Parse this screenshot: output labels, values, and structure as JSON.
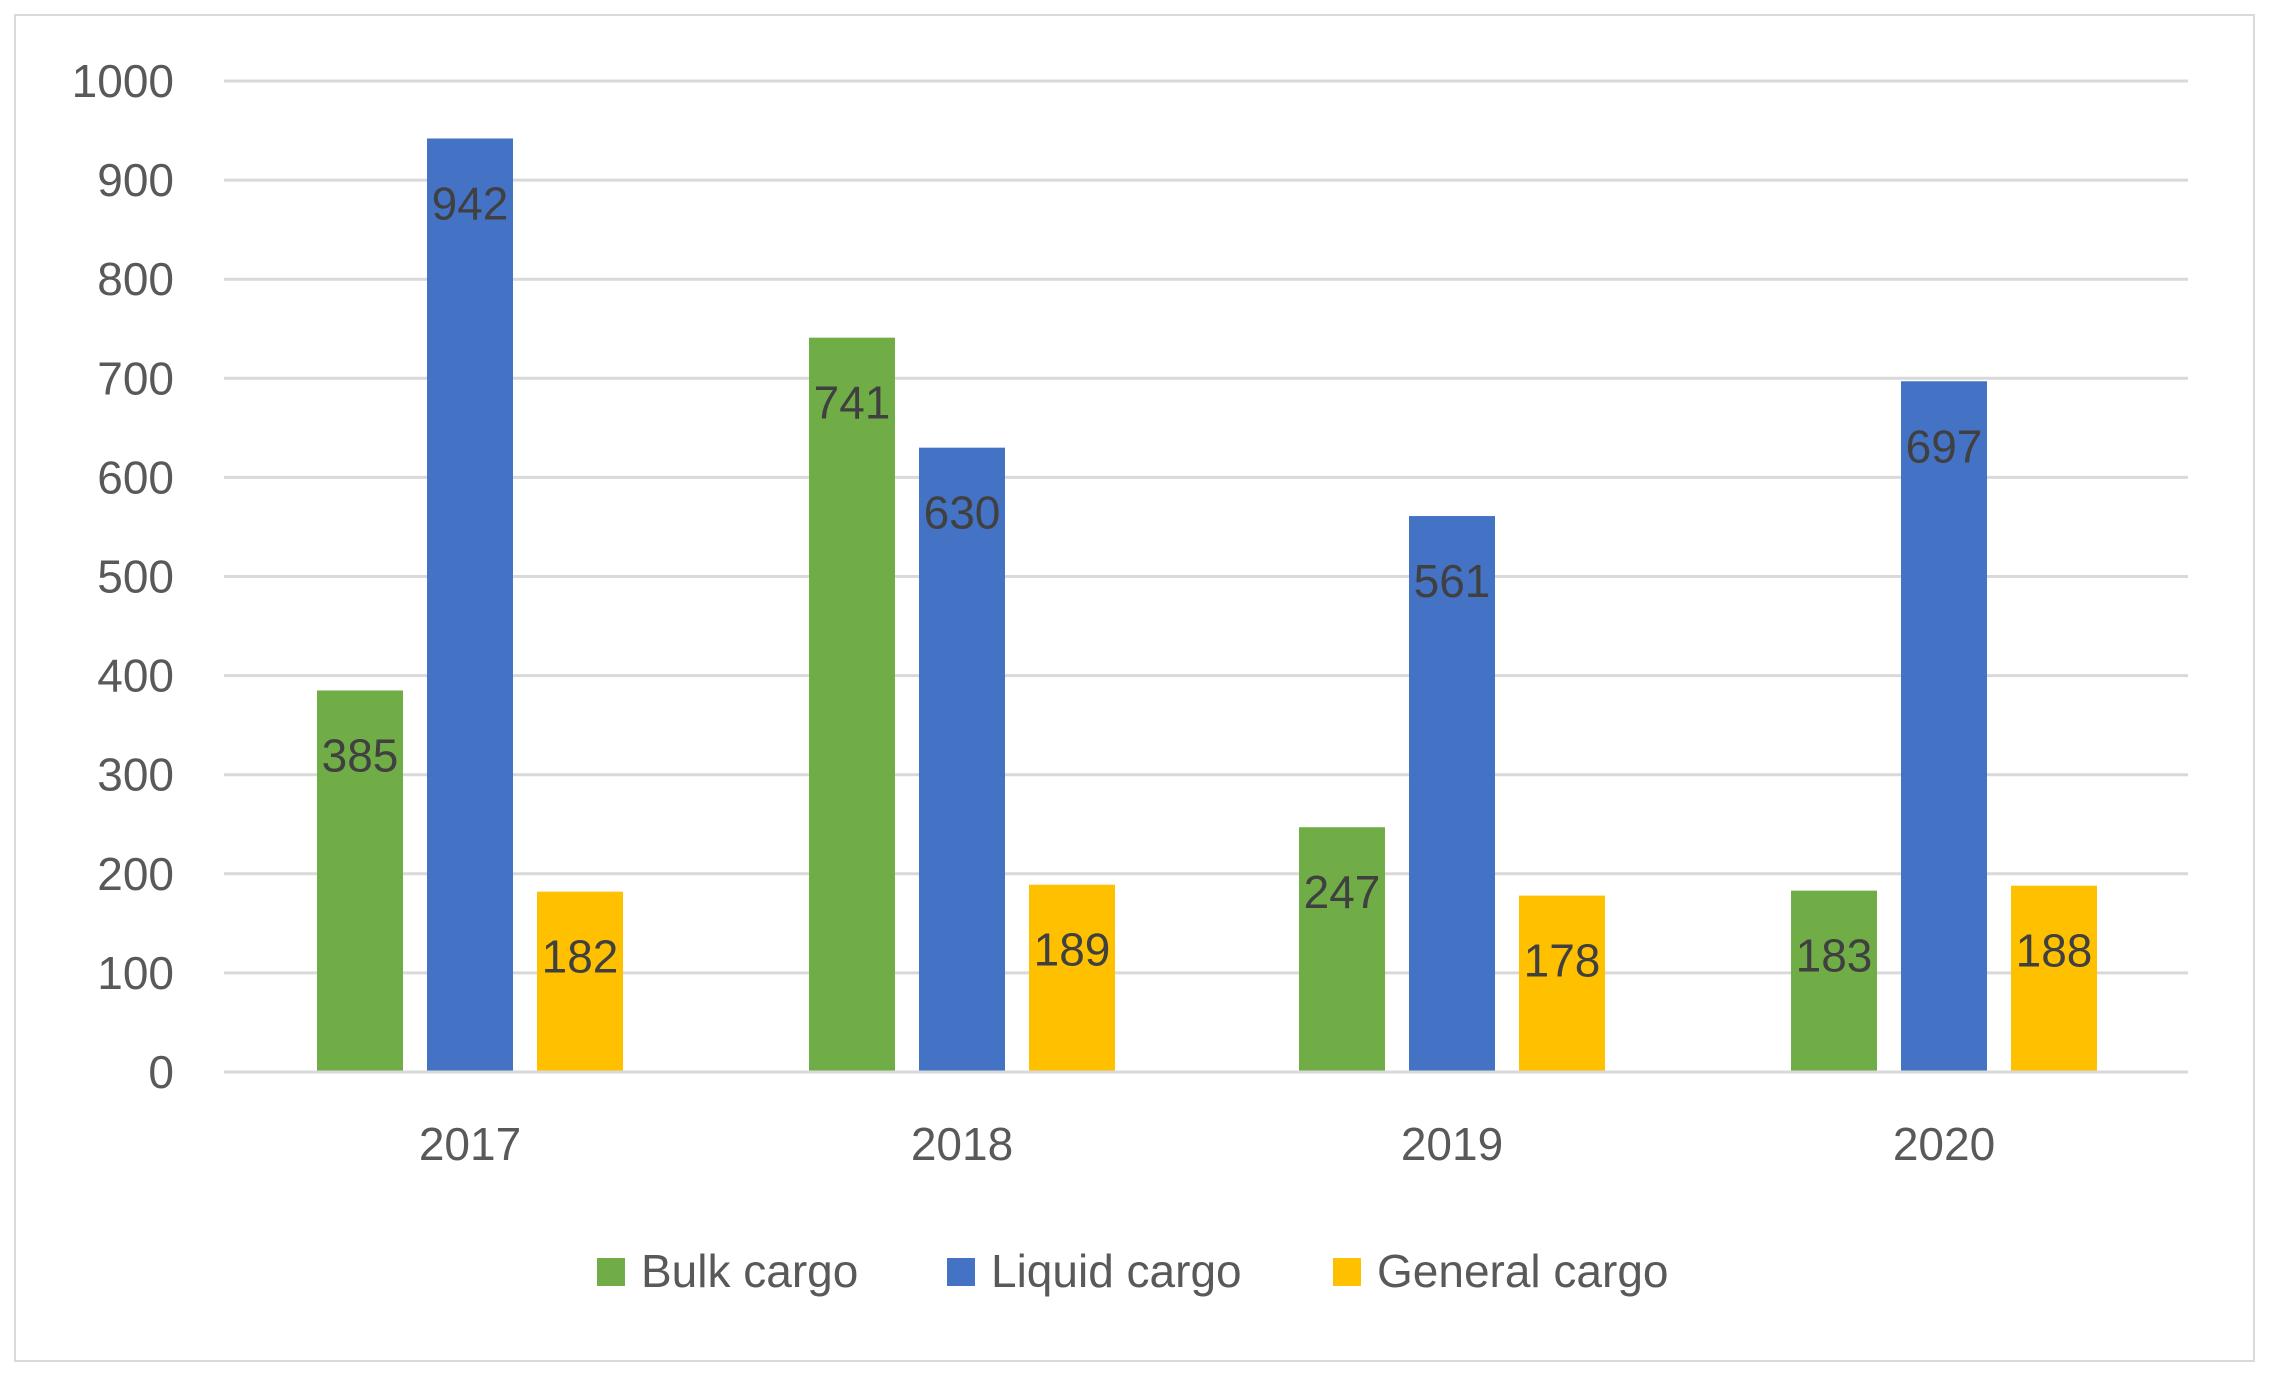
{
  "chart_data": {
    "type": "bar",
    "title": "",
    "xlabel": "",
    "ylabel": "",
    "categories": [
      "2017",
      "2018",
      "2019",
      "2020"
    ],
    "series": [
      {
        "name": "Bulk cargo",
        "color": "#70ad47",
        "values": [
          385,
          741,
          247,
          183
        ]
      },
      {
        "name": "Liquid cargo",
        "color": "#4472c4",
        "values": [
          942,
          630,
          561,
          697
        ]
      },
      {
        "name": "General cargo",
        "color": "#ffc000",
        "values": [
          182,
          189,
          178,
          188
        ]
      }
    ],
    "ylim": [
      0,
      1000
    ],
    "yticks": [
      0,
      100,
      200,
      300,
      400,
      500,
      600,
      700,
      800,
      900,
      1000
    ],
    "grid": true,
    "legend_position": "bottom",
    "data_labels": true
  }
}
